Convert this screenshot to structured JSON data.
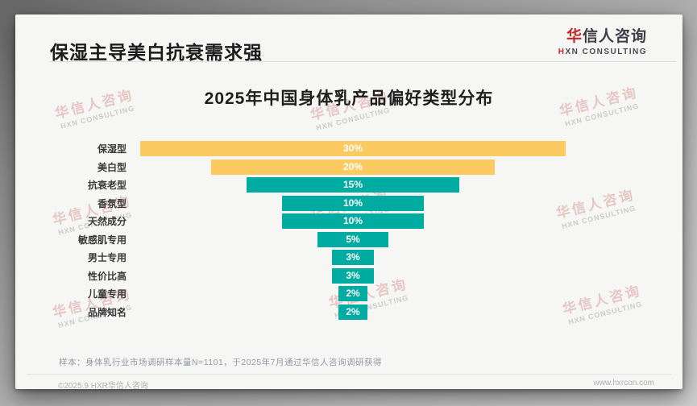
{
  "page": {
    "title": "保湿主导美白抗衰需求强",
    "logo": {
      "cn_first": "华",
      "cn_rest": "信人咨询",
      "en_first": "H",
      "en_rest": "XN CONSULTING"
    },
    "watermark": {
      "line1": "华信人咨询",
      "line2": "HXN CONSULTING"
    },
    "footer": {
      "sample_note": "样本：身体乳行业市场调研样本量N=1101，于2025年7月通过华信人咨询调研获得",
      "copyright": "©2025.9 HXR华信人咨询",
      "website": "www.hxrcon.com"
    },
    "brand_colors": {
      "accent_red": "#c02a2a",
      "bar_yellow": "#FBCA60",
      "bar_teal": "#00ABA2"
    }
  },
  "chart_data": {
    "type": "bar",
    "orientation": "horizontal-centered-funnel",
    "title": "2025年中国身体乳产品偏好类型分布",
    "categories": [
      "保湿型",
      "美白型",
      "抗衰老型",
      "香氛型",
      "天然成分",
      "敏感肌专用",
      "男士专用",
      "性价比高",
      "儿童专用",
      "品牌知名"
    ],
    "values": [
      30,
      20,
      15,
      10,
      10,
      5,
      3,
      3,
      2,
      2
    ],
    "value_labels": [
      "30%",
      "20%",
      "15%",
      "10%",
      "10%",
      "5%",
      "3%",
      "3%",
      "2%",
      "2%"
    ],
    "colors": [
      "#FBCA60",
      "#FBCA60",
      "#00ABA2",
      "#00ABA2",
      "#00ABA2",
      "#00ABA2",
      "#00ABA2",
      "#00ABA2",
      "#00ABA2",
      "#00ABA2"
    ],
    "value_unit": "%",
    "xlim": [
      0,
      30
    ],
    "grid": false,
    "legend": false,
    "value_label_position": "inside-center",
    "value_label_color": "#ffffff"
  }
}
